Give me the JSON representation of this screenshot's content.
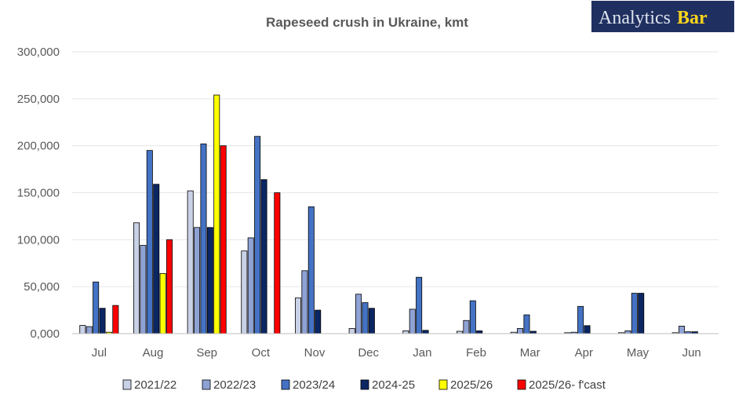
{
  "logo": {
    "part1": "Analytics",
    "part2": "Bar"
  },
  "chart_data": {
    "type": "bar",
    "title": "Rapeseed crush in Ukraine, kmt",
    "categories": [
      "Jul",
      "Aug",
      "Sep",
      "Oct",
      "Nov",
      "Dec",
      "Jan",
      "Feb",
      "Mar",
      "Apr",
      "May",
      "Jun"
    ],
    "ylim": [
      0,
      300000
    ],
    "yticks": [
      0,
      50000,
      100000,
      150000,
      200000,
      250000,
      300000
    ],
    "ytick_labels": [
      "0,000",
      "50,000",
      "100,000",
      "150,000",
      "200,000",
      "250,000",
      "300,000"
    ],
    "grid": true,
    "legend_position": "bottom",
    "series": [
      {
        "name": "2021/22",
        "color": "#c9d1e6",
        "values": [
          8800,
          118000,
          152000,
          88000,
          38000,
          5500,
          3000,
          2500,
          1500,
          1000,
          1000,
          1000
        ]
      },
      {
        "name": "2022/23",
        "color": "#8fa2d4",
        "values": [
          7500,
          94000,
          113000,
          102000,
          67000,
          42000,
          26000,
          14000,
          5500,
          1500,
          3000,
          8000
        ]
      },
      {
        "name": "2023/24",
        "color": "#4472c4",
        "values": [
          55000,
          195000,
          202000,
          210000,
          135000,
          33000,
          60000,
          35000,
          20000,
          29000,
          43000,
          2000
        ]
      },
      {
        "name": "2024-25",
        "color": "#0b2663",
        "values": [
          27000,
          159000,
          113000,
          164000,
          25000,
          27000,
          3500,
          3000,
          2500,
          8500,
          43000,
          2000
        ]
      },
      {
        "name": "2025/26",
        "color": "#ffff00",
        "values": [
          1500,
          64000,
          254000,
          null,
          null,
          null,
          null,
          null,
          null,
          null,
          null,
          null
        ]
      },
      {
        "name": "2025/26- f'cast",
        "color": "#ff0000",
        "values": [
          30000,
          100000,
          200000,
          150000,
          null,
          null,
          null,
          null,
          null,
          null,
          null,
          null
        ]
      }
    ]
  }
}
